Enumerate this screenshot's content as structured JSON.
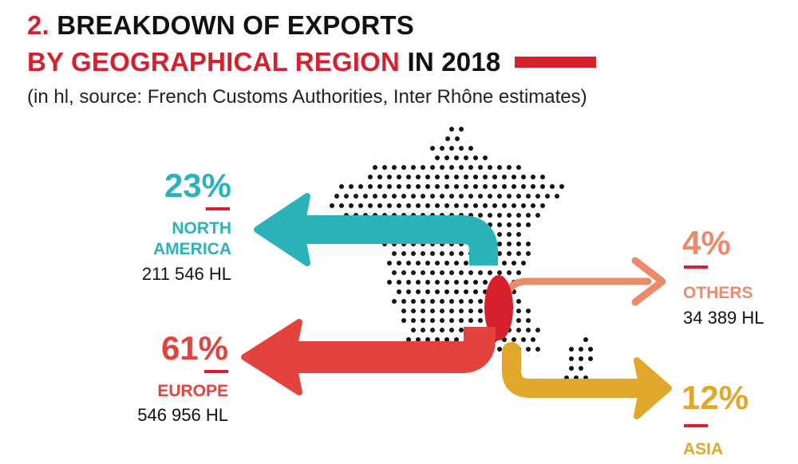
{
  "title": {
    "number": "2.",
    "line1": "BREAKDOWN OF EXPORTS",
    "line2_red": "BY GEOGRAPHICAL REGION",
    "line2_black": "IN 2018"
  },
  "subtitle": "(in hl, source: French Customs Authorities,  Inter Rhône estimates)",
  "colors": {
    "accent": "#d6202e",
    "north_america": "#2bb3b9",
    "europe": "#e4423d",
    "others": "#ec8a6c",
    "asia": "#e2a72a",
    "map_dots": "#111111"
  },
  "chart_data": {
    "type": "pie",
    "title": "BREAKDOWN OF EXPORTS BY GEOGRAPHICAL REGION IN 2018",
    "unit": "hl",
    "categories": [
      "NORTH AMERICA",
      "EUROPE",
      "OTHERS",
      "ASIA"
    ],
    "values_hl": [
      211546,
      546956,
      34389,
      null
    ],
    "percentages": [
      23,
      61,
      4,
      12
    ],
    "regions": [
      {
        "name_line1": "NORTH",
        "name_line2": "AMERICA",
        "percent_label": "23%",
        "volume_label": "211 546 HL",
        "color": "#2bb3b9"
      },
      {
        "name_line1": "EUROPE",
        "percent_label": "61%",
        "volume_label": "546 956 HL",
        "color": "#e4423d"
      },
      {
        "name_line1": "OTHERS",
        "percent_label": "4%",
        "volume_label": "34 389 HL",
        "color": "#ec8a6c"
      },
      {
        "name_line1": "ASIA",
        "percent_label": "12%",
        "volume_label": "",
        "color": "#e2a72a"
      }
    ]
  }
}
